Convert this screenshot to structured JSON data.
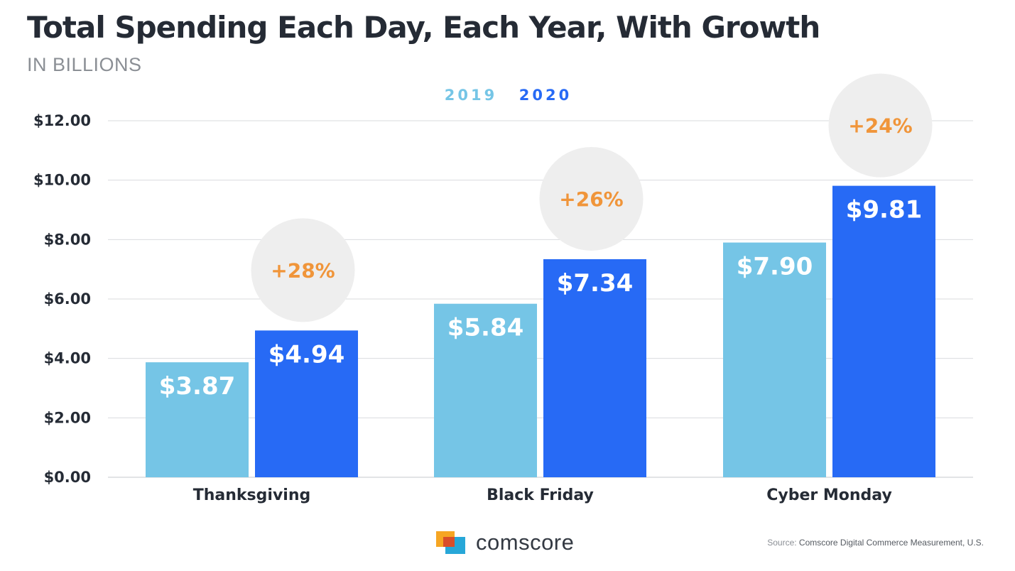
{
  "chart_data": {
    "type": "bar",
    "title": "Total Spending Each Day, Each Year, With Growth",
    "subtitle": "IN BILLIONS",
    "categories": [
      "Thanksgiving",
      "Black Friday",
      "Cyber Monday"
    ],
    "series": [
      {
        "name": "2019",
        "color": "#75c5e6",
        "values": [
          3.87,
          5.84,
          7.9
        ],
        "labels": [
          "$3.87",
          "$5.84",
          "$7.90"
        ]
      },
      {
        "name": "2020",
        "color": "#276af5",
        "values": [
          4.94,
          7.34,
          9.81
        ],
        "labels": [
          "$4.94",
          "$7.34",
          "$9.81"
        ]
      }
    ],
    "growth_labels": [
      "+28%",
      "+26%",
      "+24%"
    ],
    "ylim": [
      0,
      12
    ],
    "yticks": [
      0,
      2,
      4,
      6,
      8,
      10,
      12
    ],
    "ytick_labels": [
      "$0.00",
      "$2.00",
      "$4.00",
      "$6.00",
      "$8.00",
      "$10.00",
      "$12.00"
    ],
    "legend_position": "top-center",
    "grid": true,
    "xlabel": "",
    "ylabel": ""
  },
  "colors": {
    "growth_text": "#f0953a",
    "growth_circle": "#eeeeee",
    "axis_text": "#252b35",
    "grid": "#d9dbde"
  },
  "footer": {
    "logo_text": "comscore",
    "source_prefix": "Source: ",
    "source_text": "Comscore Digital Commerce Measurement, U.S."
  }
}
